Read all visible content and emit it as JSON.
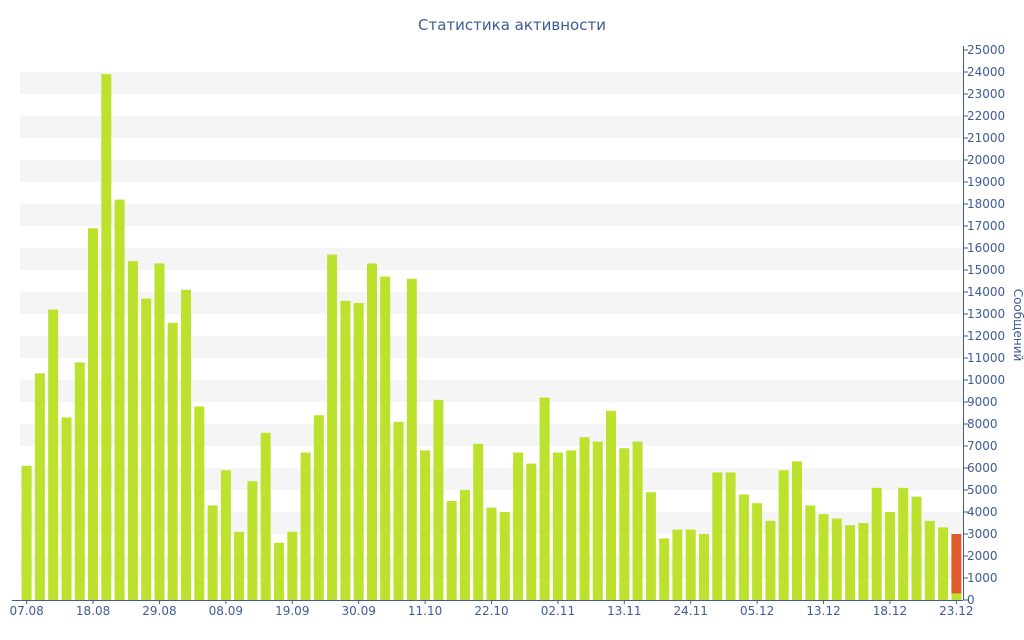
{
  "chart_data": {
    "type": "bar",
    "title": "Статистика активности",
    "ylabel": "Сообщений",
    "xlabel": "",
    "ylim": [
      0,
      25000
    ],
    "y_ticks": [
      0,
      1000,
      2000,
      3000,
      4000,
      5000,
      6000,
      7000,
      8000,
      9000,
      10000,
      11000,
      12000,
      13000,
      14000,
      15000,
      16000,
      17000,
      18000,
      19000,
      20000,
      21000,
      22000,
      23000,
      24000,
      25000
    ],
    "x_tick_labels": [
      "07.08",
      "18.08",
      "29.08",
      "08.09",
      "19.09",
      "30.09",
      "11.10",
      "22.10",
      "02.11",
      "13.11",
      "24.11",
      "05.12",
      "13.12",
      "18.12",
      "23.12"
    ],
    "x_tick_bar_indices": [
      0,
      5,
      10,
      15,
      20,
      25,
      30,
      35,
      40,
      45,
      50,
      55,
      60,
      65,
      70
    ],
    "grid": true,
    "colors": {
      "bar": "#bce22e",
      "highlight": "#e05a2b",
      "axis": "#3f5b96",
      "band": "#f5f5f5"
    },
    "series": [
      {
        "values": [
          6100,
          10300,
          13200,
          8300,
          10800,
          16900,
          23900,
          18200,
          15400,
          13700,
          15300,
          12600,
          14100,
          8800,
          4300,
          5900,
          3100,
          5400,
          7600,
          2600,
          3100,
          6700,
          8400,
          15700,
          13600,
          13500,
          15300,
          14700,
          8100,
          14600,
          6800,
          9100,
          4500,
          5000,
          7100,
          4200,
          4000,
          6700,
          6200,
          9200,
          6700,
          6800,
          7400,
          7200,
          8600,
          6900,
          7200,
          4900,
          2800,
          3200,
          3200,
          3000,
          5800,
          5800,
          4800,
          4400,
          3600,
          5900,
          6300,
          4300,
          3900,
          3700,
          3400,
          3500,
          5100,
          4000,
          5100,
          4700,
          3600,
          3300,
          300
        ]
      },
      {
        "name": "",
        "values": [
          null,
          null,
          null,
          null,
          null,
          null,
          null,
          null,
          null,
          null,
          null,
          null,
          null,
          null,
          null,
          null,
          null,
          null,
          null,
          null,
          null,
          null,
          null,
          null,
          null,
          null,
          null,
          null,
          null,
          null,
          null,
          null,
          null,
          null,
          null,
          null,
          null,
          null,
          null,
          null,
          null,
          null,
          null,
          null,
          null,
          null,
          null,
          null,
          null,
          null,
          null,
          null,
          null,
          null,
          null,
          null,
          null,
          null,
          null,
          null,
          null,
          null,
          null,
          null,
          null,
          null,
          null,
          null,
          null,
          null,
          2700
        ]
      }
    ]
  }
}
